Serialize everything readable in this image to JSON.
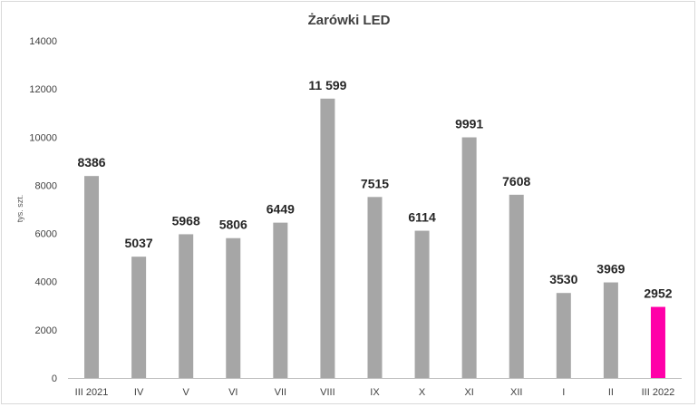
{
  "chart_data": {
    "type": "bar",
    "title": "Żarówki LED",
    "ylabel": "tys. szt.",
    "xlabel": "",
    "ylim": [
      0,
      14000
    ],
    "yticks": [
      "0",
      "2000",
      "4000",
      "6000",
      "8000",
      "10000",
      "12000",
      "14000"
    ],
    "categories": [
      "III 2021",
      "IV",
      "V",
      "VI",
      "VII",
      "VIII",
      "IX",
      "X",
      "XI",
      "XII",
      "I",
      "II",
      "III 2022"
    ],
    "values": [
      8386,
      5037,
      5968,
      5806,
      6449,
      11599,
      7515,
      6114,
      9991,
      7608,
      3530,
      3969,
      2952
    ],
    "value_labels": [
      "8386",
      "5037",
      "5968",
      "5806",
      "6449",
      "11 599",
      "7515",
      "6114",
      "9991",
      "7608",
      "3530",
      "3969",
      "2952"
    ],
    "grid": false,
    "legend": "none",
    "colors": {
      "default": "#a6a6a6",
      "highlight": "#ff00a8"
    },
    "highlight_index": 12
  }
}
